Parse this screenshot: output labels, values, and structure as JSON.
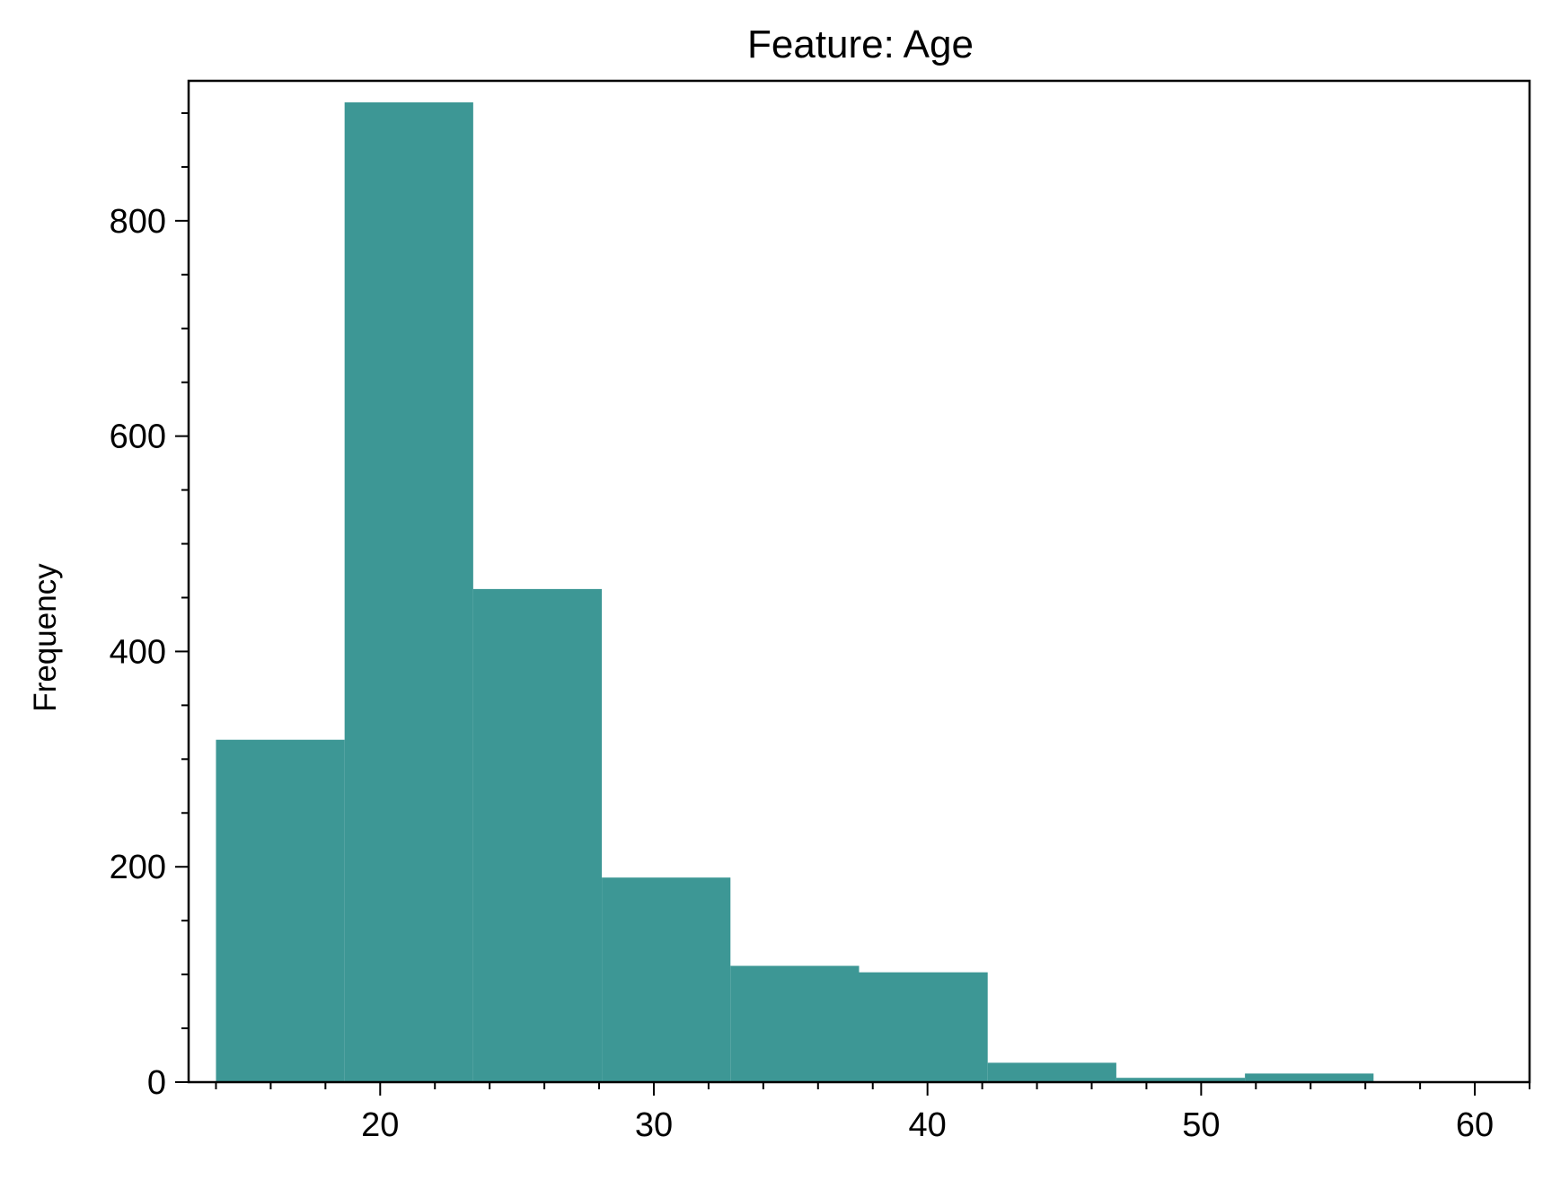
{
  "chart_data": {
    "type": "bar",
    "title": "Feature: Age",
    "xlabel": "",
    "ylabel": "Frequency",
    "bin_edges": [
      14.0,
      18.7,
      23.4,
      28.1,
      32.8,
      37.5,
      42.2,
      46.9,
      51.6,
      56.3,
      61.0
    ],
    "values": [
      318,
      910,
      458,
      190,
      108,
      102,
      18,
      4,
      8,
      0
    ],
    "xlim": [
      13.0,
      62.0
    ],
    "ylim": [
      0,
      930
    ],
    "x_ticks": [
      20,
      30,
      40,
      50,
      60
    ],
    "x_minor_step": 2,
    "y_ticks": [
      0,
      200,
      400,
      600,
      800
    ],
    "y_minor_step": 50,
    "grid": false,
    "bar_color": "#3d9795"
  }
}
